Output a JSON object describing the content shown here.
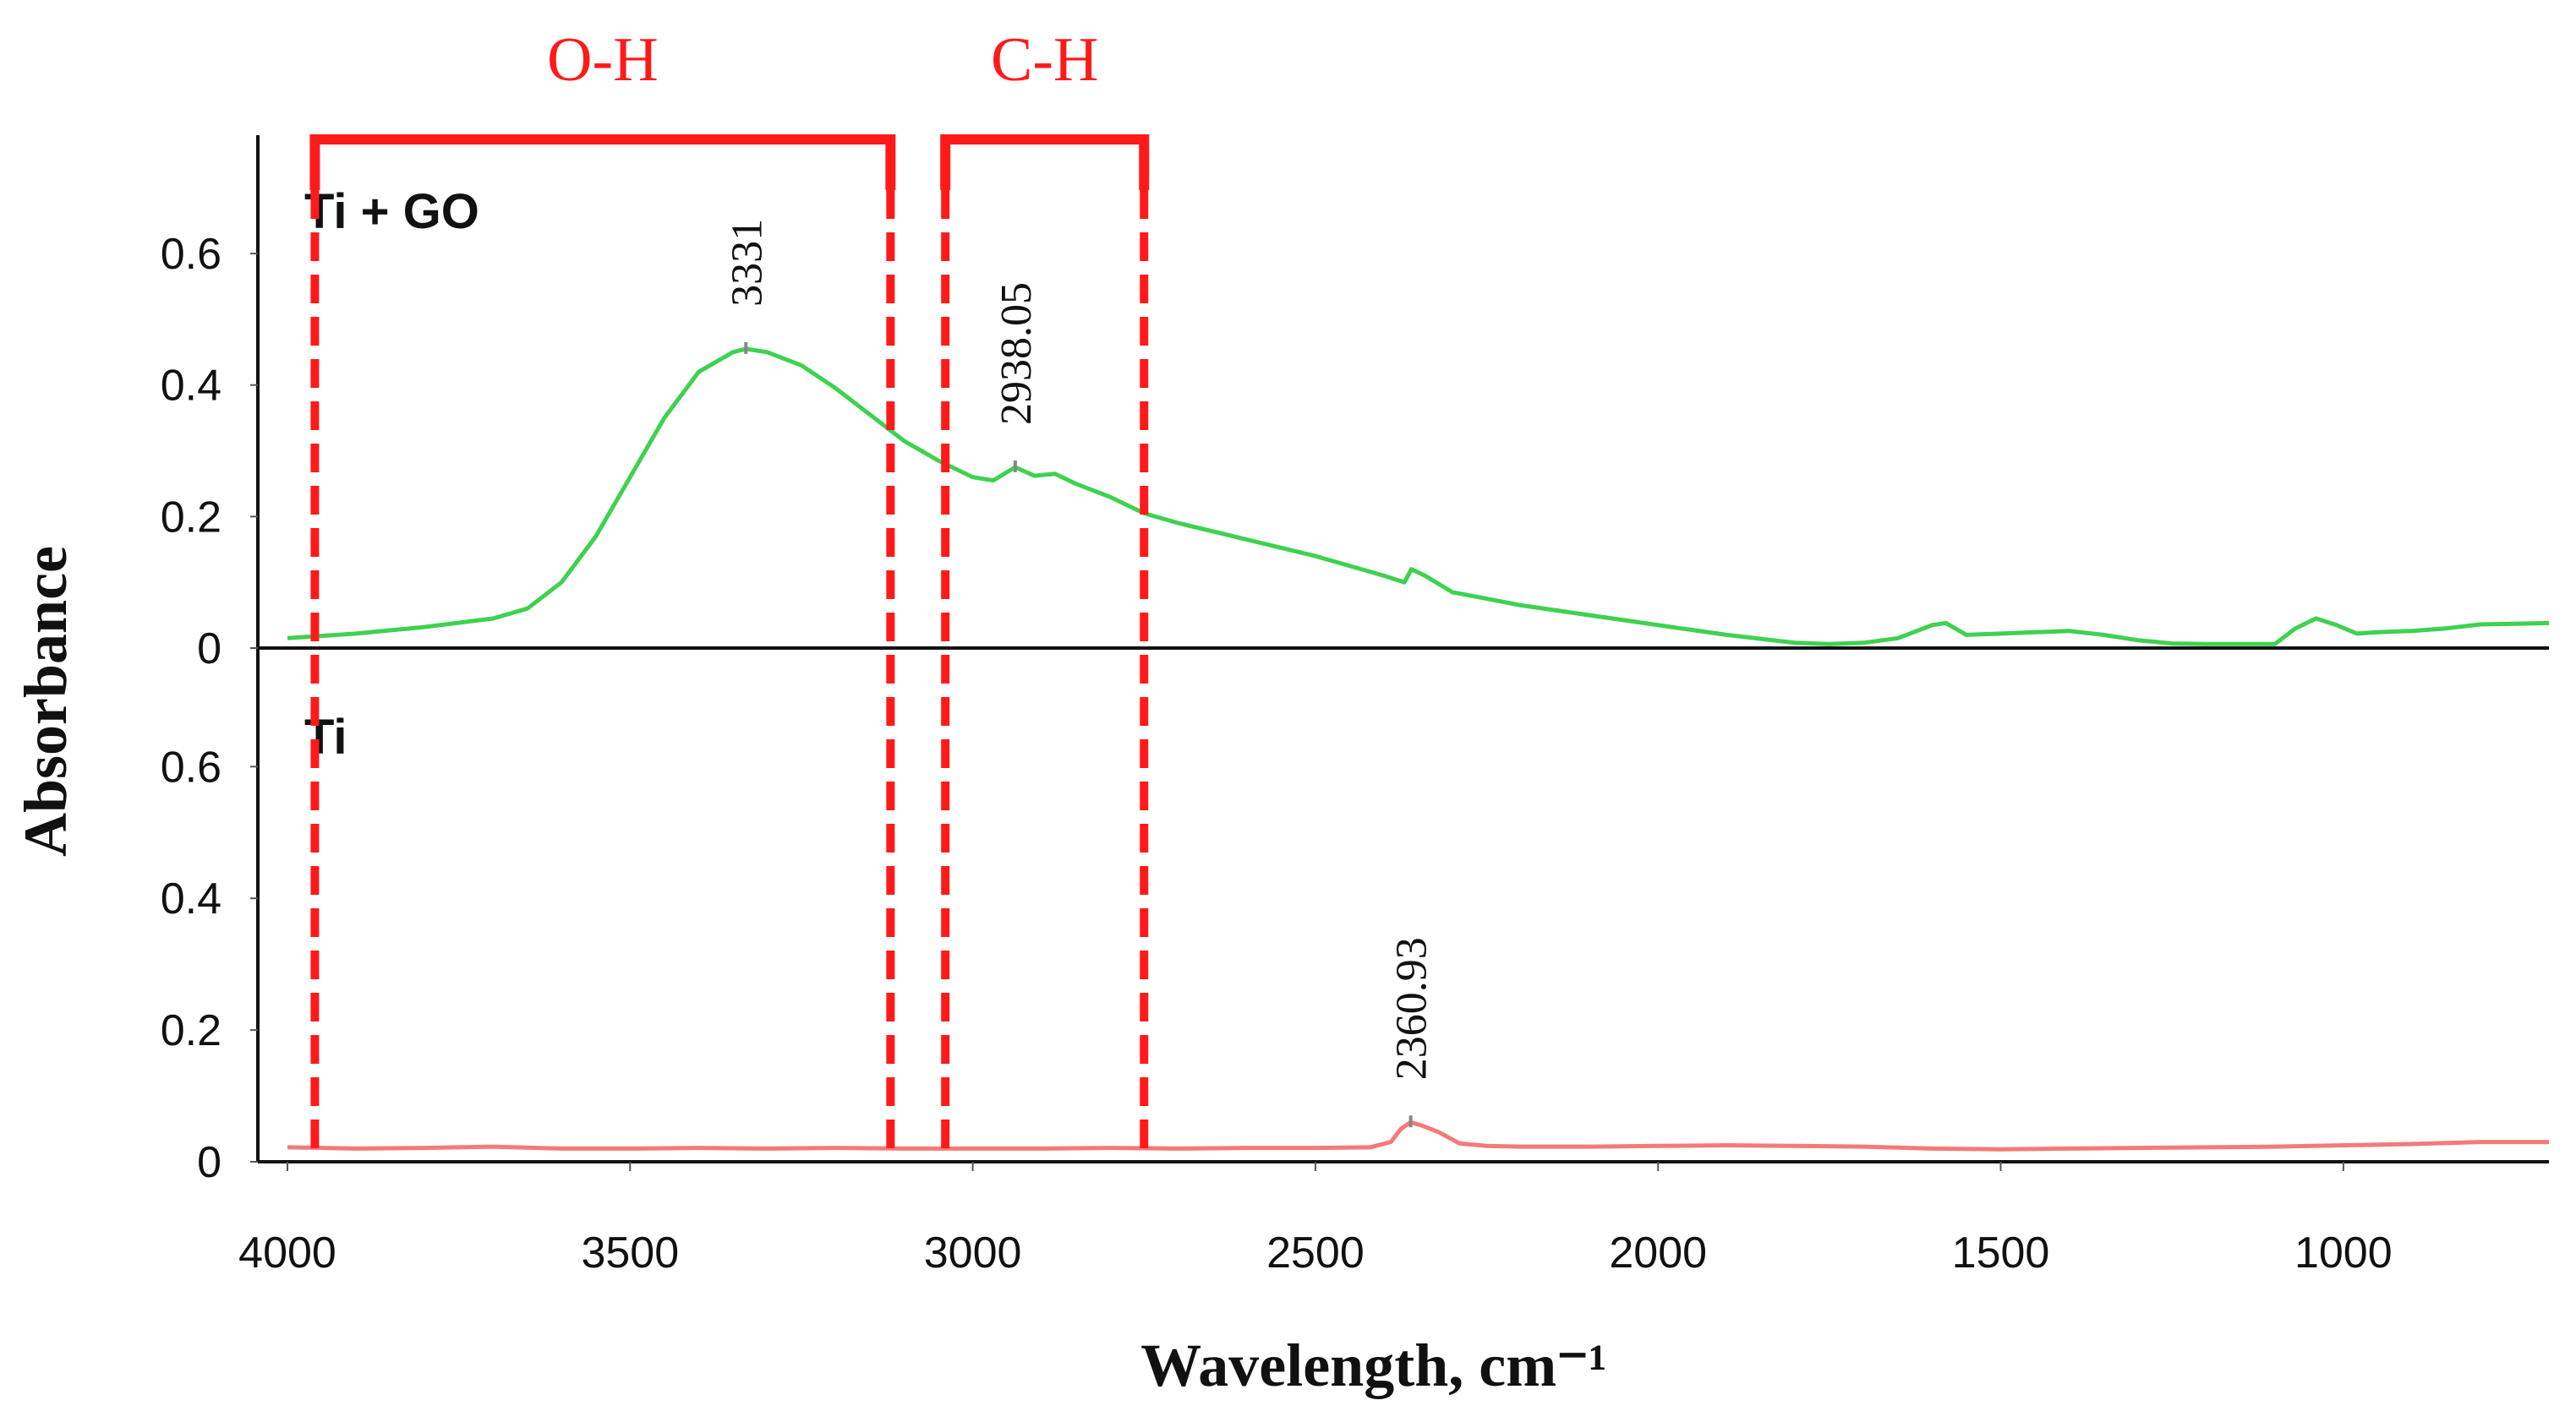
{
  "chart_data": {
    "type": "line",
    "xlabel": "Wavelength, cm⁻¹",
    "ylabel": "Absorbance",
    "xlim": [
      4000,
      700
    ],
    "x_ticks": [
      4000,
      3500,
      3000,
      2500,
      2000,
      1500,
      1000
    ],
    "x_tick_labels": [
      "4000",
      "3500",
      "3000",
      "2500",
      "2000",
      "1500",
      "1000"
    ],
    "panels": [
      {
        "label": "Ti + GO",
        "ylim": [
          0,
          0.78
        ],
        "y_ticks": [
          0,
          0.2,
          0.4,
          0.6
        ],
        "y_tick_labels": [
          "0",
          "0.2",
          "0.4",
          "0.6"
        ],
        "color": "#3fd14f",
        "x": [
          4000,
          3900,
          3800,
          3700,
          3650,
          3600,
          3550,
          3500,
          3450,
          3400,
          3350,
          3331,
          3300,
          3250,
          3200,
          3150,
          3100,
          3050,
          3000,
          2970,
          2938.05,
          2910,
          2880,
          2850,
          2800,
          2750,
          2700,
          2600,
          2500,
          2400,
          2370,
          2360,
          2340,
          2300,
          2250,
          2200,
          2100,
          2000,
          1900,
          1800,
          1750,
          1700,
          1650,
          1600,
          1580,
          1550,
          1500,
          1450,
          1400,
          1350,
          1300,
          1250,
          1200,
          1150,
          1100,
          1070,
          1040,
          1010,
          980,
          950,
          900,
          850,
          800,
          750,
          700
        ],
        "y": [
          0.015,
          0.022,
          0.032,
          0.045,
          0.06,
          0.1,
          0.17,
          0.26,
          0.35,
          0.42,
          0.45,
          0.455,
          0.45,
          0.43,
          0.395,
          0.355,
          0.315,
          0.285,
          0.26,
          0.255,
          0.275,
          0.262,
          0.265,
          0.25,
          0.23,
          0.205,
          0.19,
          0.165,
          0.14,
          0.11,
          0.1,
          0.12,
          0.11,
          0.085,
          0.075,
          0.065,
          0.05,
          0.035,
          0.02,
          0.008,
          0.006,
          0.008,
          0.015,
          0.035,
          0.038,
          0.02,
          0.022,
          0.024,
          0.026,
          0.02,
          0.012,
          0.007,
          0.006,
          0.006,
          0.006,
          0.03,
          0.045,
          0.035,
          0.022,
          0.024,
          0.026,
          0.03,
          0.036,
          0.037,
          0.038
        ],
        "peaks": [
          {
            "x": 3331,
            "y": 0.455,
            "label": "3331"
          },
          {
            "x": 2938.05,
            "y": 0.275,
            "label": "2938.05"
          }
        ]
      },
      {
        "label": "Ti",
        "ylim": [
          0,
          0.78
        ],
        "y_ticks": [
          0,
          0.2,
          0.4,
          0.6
        ],
        "y_tick_labels": [
          "0",
          "0.2",
          "0.4",
          "0.6"
        ],
        "color": "#f47a7a",
        "x": [
          4000,
          3900,
          3800,
          3700,
          3600,
          3500,
          3400,
          3300,
          3200,
          3100,
          3000,
          2900,
          2800,
          2700,
          2600,
          2500,
          2420,
          2390,
          2375,
          2360.93,
          2345,
          2320,
          2290,
          2250,
          2200,
          2100,
          2000,
          1900,
          1800,
          1700,
          1600,
          1500,
          1400,
          1300,
          1200,
          1100,
          1000,
          900,
          800,
          700
        ],
        "y": [
          0.022,
          0.02,
          0.021,
          0.023,
          0.02,
          0.02,
          0.021,
          0.02,
          0.021,
          0.02,
          0.02,
          0.02,
          0.021,
          0.02,
          0.021,
          0.021,
          0.022,
          0.03,
          0.05,
          0.06,
          0.055,
          0.045,
          0.028,
          0.024,
          0.023,
          0.023,
          0.024,
          0.025,
          0.024,
          0.023,
          0.02,
          0.019,
          0.02,
          0.021,
          0.022,
          0.023,
          0.025,
          0.027,
          0.03,
          0.03
        ],
        "peaks": [
          {
            "x": 2360.93,
            "y": 0.06,
            "label": "2360.93"
          }
        ]
      }
    ],
    "regions": [
      {
        "label": "O-H",
        "x_from": 3960,
        "x_to": 3120
      },
      {
        "label": "C-H",
        "x_from": 3040,
        "x_to": 2750
      }
    ]
  }
}
